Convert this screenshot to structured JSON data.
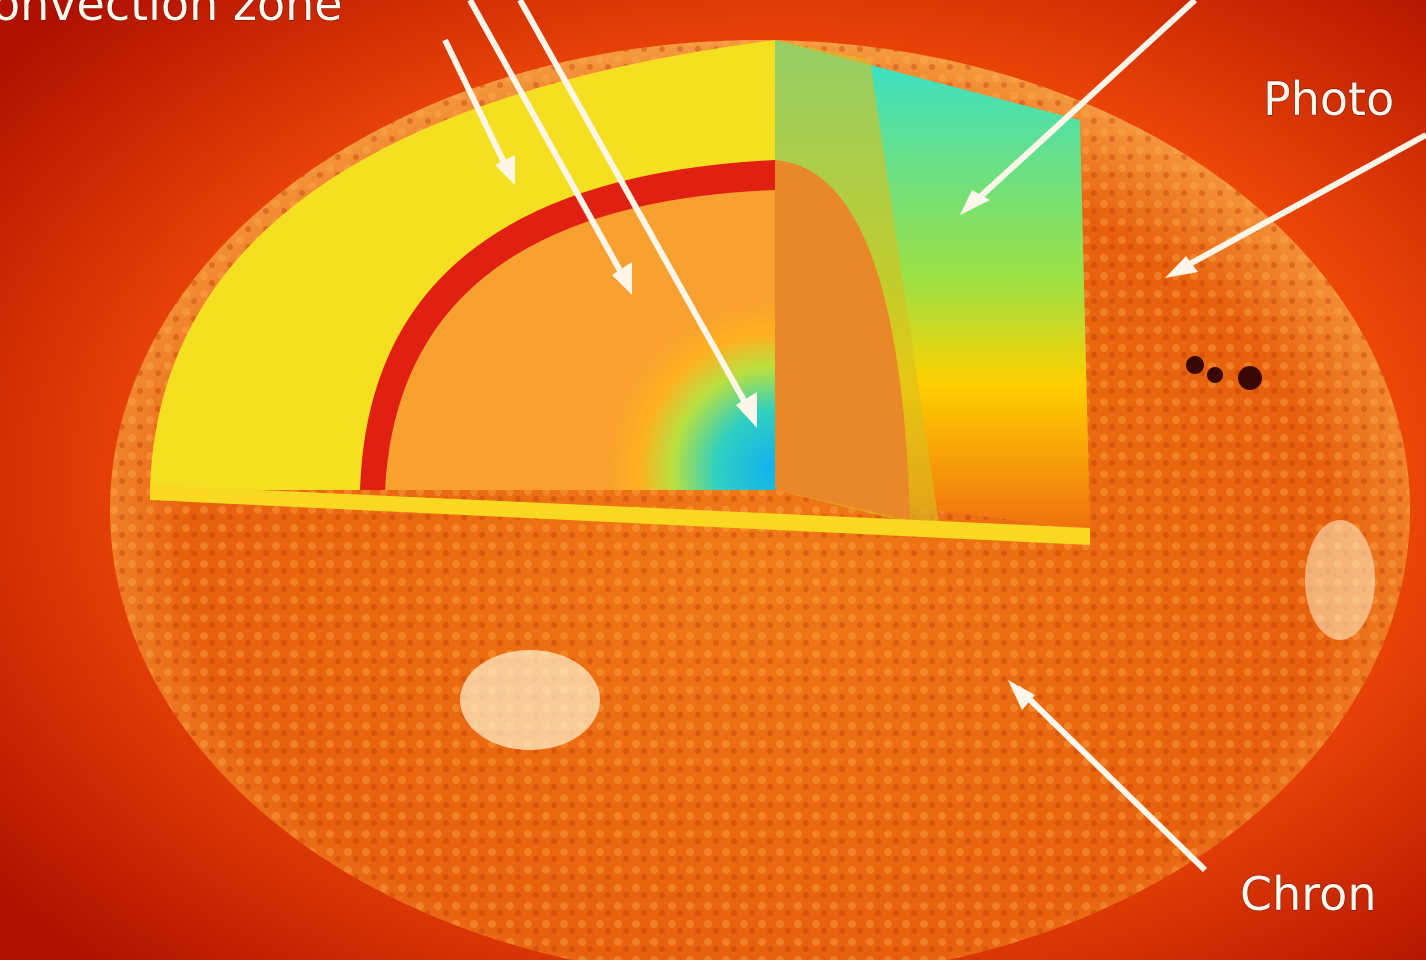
{
  "labels": {
    "convection": "onvection zone",
    "photosphere": "Photo",
    "chromosphere": "Chron"
  }
}
